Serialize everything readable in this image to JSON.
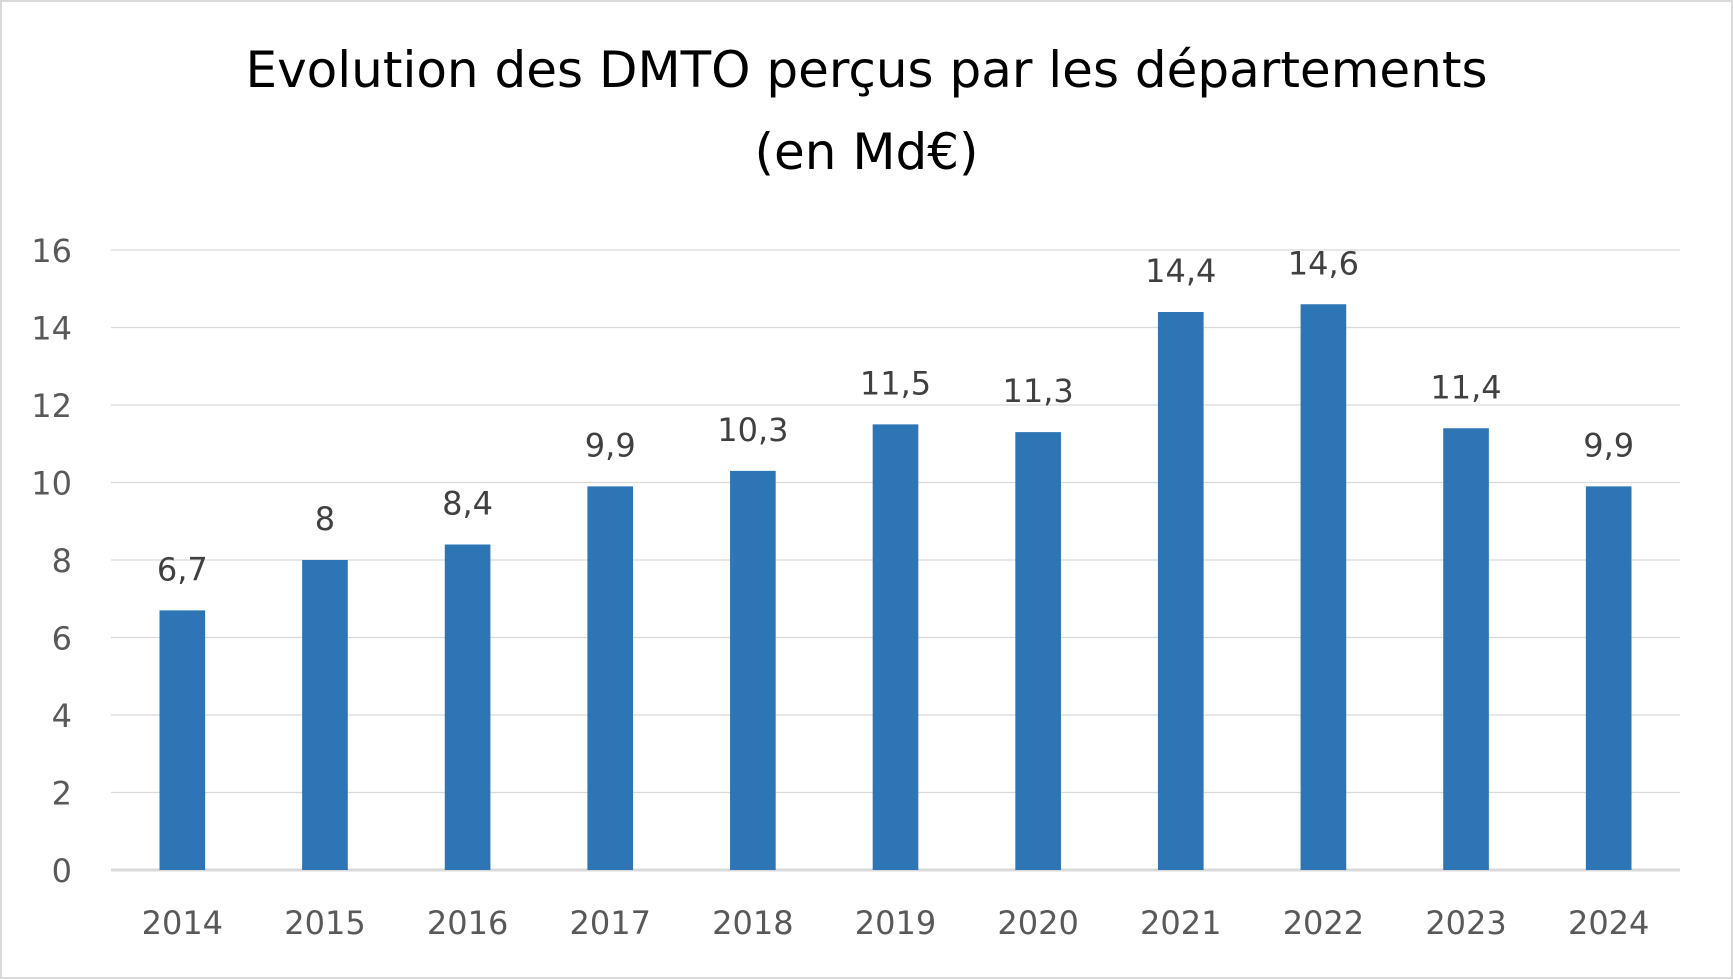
{
  "chart_data": {
    "type": "bar",
    "title_line1": "Evolution des DMTO perçus par les départements",
    "title_line2": "(en Md€)",
    "xlabel": "",
    "ylabel": "",
    "categories": [
      "2014",
      "2015",
      "2016",
      "2017",
      "2018",
      "2019",
      "2020",
      "2021",
      "2022",
      "2023",
      "2024"
    ],
    "values": [
      6.7,
      8,
      8.4,
      9.9,
      10.3,
      11.5,
      11.3,
      14.4,
      14.6,
      11.4,
      9.9
    ],
    "data_labels": [
      "6,7",
      "8",
      "8,4",
      "9,9",
      "10,3",
      "11,5",
      "11,3",
      "14,4",
      "14,6",
      "11,4",
      "9,9"
    ],
    "ylim": [
      0,
      16
    ],
    "yticks": [
      "0",
      "2",
      "4",
      "6",
      "8",
      "10",
      "12",
      "14",
      "16"
    ],
    "grid": true,
    "legend": "none",
    "bar_color": "#2e75b6",
    "grid_color": "#d9d9d9",
    "tick_label_color": "#595959",
    "data_label_color": "#404040"
  }
}
